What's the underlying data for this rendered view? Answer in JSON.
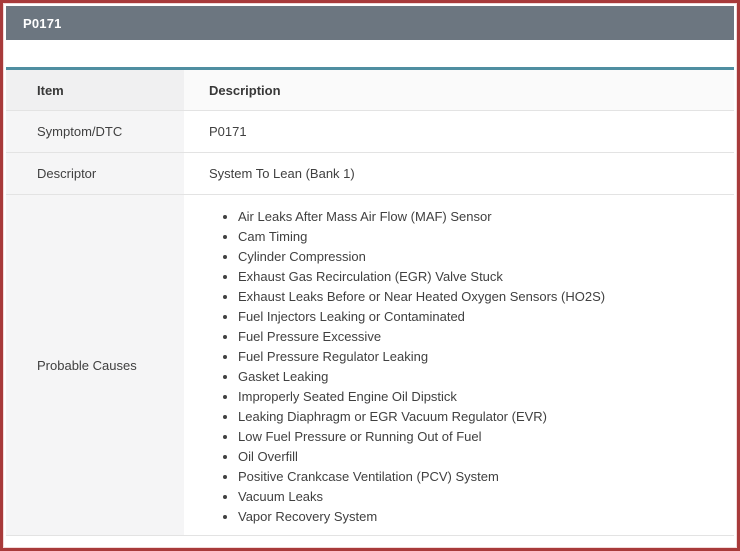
{
  "header": {
    "title": "P0171"
  },
  "table": {
    "columns": [
      "Item",
      "Description"
    ],
    "rows": [
      {
        "item": "Symptom/DTC",
        "description": "P0171"
      },
      {
        "item": "Descriptor",
        "description": "System To Lean (Bank 1)"
      },
      {
        "item": "Probable Causes",
        "causes": [
          "Air Leaks After Mass Air Flow (MAF) Sensor",
          "Cam Timing",
          "Cylinder Compression",
          "Exhaust Gas Recirculation (EGR) Valve Stuck",
          "Exhaust Leaks Before or Near Heated Oxygen Sensors (HO2S)",
          "Fuel Injectors Leaking or Contaminated",
          "Fuel Pressure Excessive",
          "Fuel Pressure Regulator Leaking",
          "Gasket Leaking",
          "Improperly Seated Engine Oil Dipstick",
          "Leaking Diaphragm or EGR Vacuum Regulator (EVR)",
          "Low Fuel Pressure or Running Out of Fuel",
          "Oil Overfill",
          "Positive Crankcase Ventilation (PCV) System",
          "Vacuum Leaks",
          "Vapor Recovery System"
        ]
      }
    ]
  },
  "colors": {
    "frame_border": "#a83a3a",
    "title_bar_bg": "#6c7680",
    "title_bar_text": "#ffffff",
    "table_top_border": "#4f8ea1",
    "item_column_bg": "#f5f5f6",
    "row_divider": "#e3e3e3",
    "body_text": "#404040"
  }
}
